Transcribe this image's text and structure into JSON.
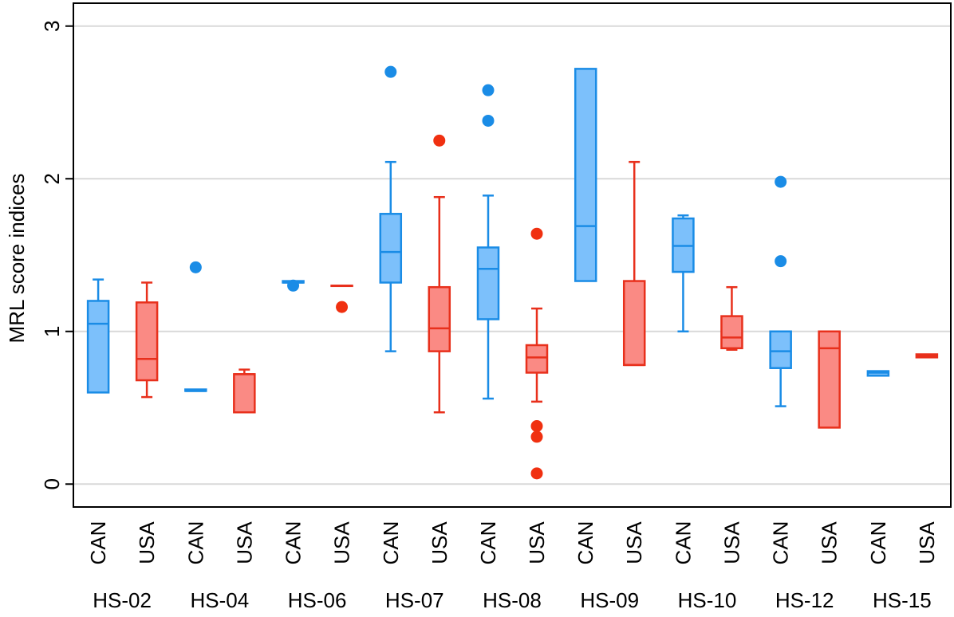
{
  "chart_data": {
    "type": "box",
    "title": "",
    "xlabel": "",
    "ylabel": "MRL score indices",
    "ylim": [
      -0.15,
      3.15
    ],
    "yticks": [
      "0",
      "1",
      "2",
      "3"
    ],
    "grid": true,
    "colors": {
      "CAN": {
        "fill": "#7cc0fb",
        "stroke": "#1a8ce6",
        "outlier": "#1a8ce6"
      },
      "USA": {
        "fill": "#fa8a84",
        "stroke": "#e8301c",
        "outlier": "#f03010"
      }
    },
    "groups": [
      {
        "name": "HS-02",
        "boxes": [
          {
            "country": "CAN",
            "min": 0.6,
            "q1": 0.6,
            "median": 1.05,
            "q3": 1.2,
            "max": 1.34,
            "outliers": []
          },
          {
            "country": "USA",
            "min": 0.57,
            "q1": 0.68,
            "median": 0.82,
            "q3": 1.19,
            "max": 1.32,
            "outliers": []
          }
        ]
      },
      {
        "name": "HS-04",
        "boxes": [
          {
            "country": "CAN",
            "min": 0.61,
            "q1": 0.61,
            "median": 0.61,
            "q3": 0.62,
            "max": 0.62,
            "outliers": [
              1.42
            ]
          },
          {
            "country": "USA",
            "min": 0.47,
            "q1": 0.47,
            "median": 0.72,
            "q3": 0.72,
            "max": 0.75,
            "outliers": []
          }
        ]
      },
      {
        "name": "HS-06",
        "boxes": [
          {
            "country": "CAN",
            "min": 1.32,
            "q1": 1.32,
            "median": 1.32,
            "q3": 1.33,
            "max": 1.33,
            "outliers": [
              1.3
            ]
          },
          {
            "country": "USA",
            "min": 1.3,
            "q1": 1.3,
            "median": 1.3,
            "q3": 1.3,
            "max": 1.3,
            "outliers": [
              1.16
            ]
          }
        ]
      },
      {
        "name": "HS-07",
        "boxes": [
          {
            "country": "CAN",
            "min": 0.87,
            "q1": 1.32,
            "median": 1.52,
            "q3": 1.77,
            "max": 2.11,
            "outliers": [
              2.7
            ]
          },
          {
            "country": "USA",
            "min": 0.47,
            "q1": 0.87,
            "median": 1.02,
            "q3": 1.29,
            "max": 1.88,
            "outliers": [
              2.25
            ]
          }
        ]
      },
      {
        "name": "HS-08",
        "boxes": [
          {
            "country": "CAN",
            "min": 0.56,
            "q1": 1.08,
            "median": 1.41,
            "q3": 1.55,
            "max": 1.89,
            "outliers": [
              2.58,
              2.38
            ]
          },
          {
            "country": "USA",
            "min": 0.54,
            "q1": 0.73,
            "median": 0.83,
            "q3": 0.91,
            "max": 1.15,
            "outliers": [
              1.64,
              0.38,
              0.31,
              0.07
            ]
          }
        ]
      },
      {
        "name": "HS-09",
        "boxes": [
          {
            "country": "CAN",
            "min": 1.33,
            "q1": 1.33,
            "median": 1.69,
            "q3": 2.72,
            "max": 2.72,
            "outliers": []
          },
          {
            "country": "USA",
            "min": 0.78,
            "q1": 0.78,
            "median": 0.78,
            "q3": 1.33,
            "max": 2.11,
            "outliers": []
          }
        ]
      },
      {
        "name": "HS-10",
        "boxes": [
          {
            "country": "CAN",
            "min": 1.0,
            "q1": 1.39,
            "median": 1.56,
            "q3": 1.74,
            "max": 1.76,
            "outliers": []
          },
          {
            "country": "USA",
            "min": 0.88,
            "q1": 0.89,
            "median": 0.96,
            "q3": 1.1,
            "max": 1.29,
            "outliers": []
          }
        ]
      },
      {
        "name": "HS-12",
        "boxes": [
          {
            "country": "CAN",
            "min": 0.51,
            "q1": 0.76,
            "median": 0.87,
            "q3": 1.0,
            "max": 1.0,
            "outliers": [
              1.98,
              1.46
            ]
          },
          {
            "country": "USA",
            "min": 0.37,
            "q1": 0.37,
            "median": 0.89,
            "q3": 1.0,
            "max": 1.0,
            "outliers": []
          }
        ]
      },
      {
        "name": "HS-15",
        "boxes": [
          {
            "country": "CAN",
            "min": 0.71,
            "q1": 0.71,
            "median": 0.73,
            "q3": 0.74,
            "max": 0.74,
            "outliers": []
          },
          {
            "country": "USA",
            "min": 0.83,
            "q1": 0.83,
            "median": 0.84,
            "q3": 0.85,
            "max": 0.85,
            "outliers": []
          }
        ]
      }
    ]
  }
}
